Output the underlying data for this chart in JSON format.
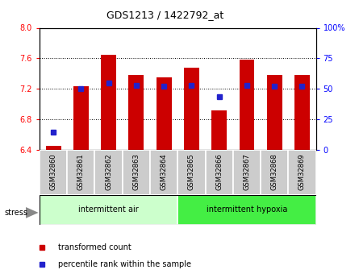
{
  "title": "GDS1213 / 1422792_at",
  "samples": [
    "GSM32860",
    "GSM32861",
    "GSM32862",
    "GSM32863",
    "GSM32864",
    "GSM32865",
    "GSM32866",
    "GSM32867",
    "GSM32868",
    "GSM32869"
  ],
  "bar_values": [
    6.46,
    7.24,
    7.65,
    7.38,
    7.35,
    7.48,
    6.92,
    7.58,
    7.38,
    7.38
  ],
  "percentile_values": [
    15,
    50,
    55,
    53,
    52,
    53,
    44,
    53,
    52,
    52
  ],
  "ylim": [
    6.4,
    8.0
  ],
  "y_ticks": [
    6.4,
    6.8,
    7.2,
    7.6,
    8.0
  ],
  "right_ylim": [
    0,
    100
  ],
  "right_yticks": [
    0,
    25,
    50,
    75,
    100
  ],
  "right_yticklabels": [
    "0",
    "25",
    "50",
    "75",
    "100%"
  ],
  "bar_color": "#cc0000",
  "dot_color": "#2222cc",
  "bar_base": 6.4,
  "bar_width": 0.55,
  "groups": [
    {
      "label": "intermittent air",
      "start": 0,
      "end": 5,
      "color": "#ccffcc"
    },
    {
      "label": "intermittent hypoxia",
      "start": 5,
      "end": 10,
      "color": "#44ee44"
    }
  ],
  "stress_label": "stress",
  "legend_bar_label": "transformed count",
  "legend_dot_label": "percentile rank within the sample",
  "tick_label_bg": "#cccccc",
  "fig_width": 4.45,
  "fig_height": 3.45,
  "dpi": 100
}
